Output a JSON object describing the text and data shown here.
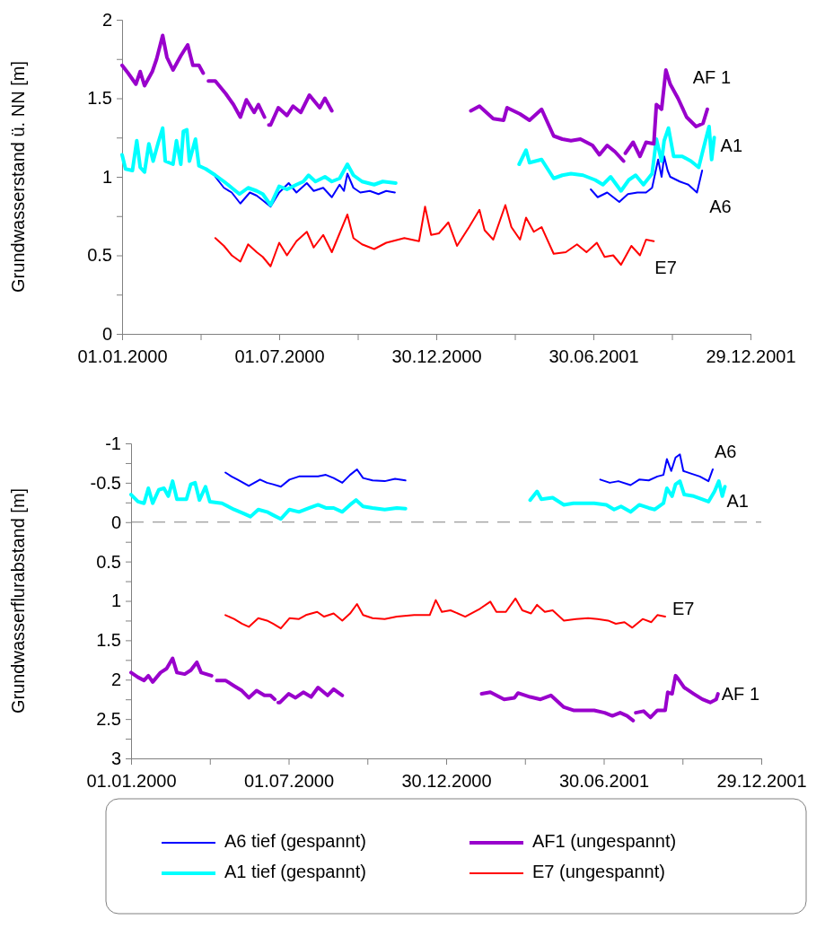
{
  "chart_data": [
    {
      "type": "line",
      "ylabel": "Grundwasserstand ü. NN [m]",
      "xlim": [
        "2000-01-01",
        "2001-12-29"
      ],
      "xticks": [
        {
          "value": "2000-01-01",
          "label": "01.01.2000"
        },
        {
          "value": "2000-04-01",
          "label": null
        },
        {
          "value": "2000-07-01",
          "label": "01.07.2000"
        },
        {
          "value": "2000-09-30",
          "label": null
        },
        {
          "value": "2000-12-30",
          "label": "30.12.2000"
        },
        {
          "value": "2001-03-31",
          "label": null
        },
        {
          "value": "2001-06-30",
          "label": "30.06.2001"
        },
        {
          "value": "2001-09-29",
          "label": null
        },
        {
          "value": "2001-12-29",
          "label": "29.12.2001"
        }
      ],
      "ylim": [
        0,
        2
      ],
      "yticks": [
        0,
        {
          "value": 0.25,
          "label": null
        },
        0.5,
        {
          "value": 0.75,
          "label": null
        },
        1,
        {
          "value": 1.25,
          "label": null
        },
        1.5,
        {
          "value": 1.75,
          "label": null
        },
        2
      ],
      "series": [
        {
          "color": "#0000ff",
          "x": [
            "2000-04-18",
            "2000-04-28",
            "2000-05-07",
            "2000-05-17",
            "2000-05-28",
            "2000-06-05",
            "2000-06-12",
            "2000-06-21",
            "2000-07-01",
            "2000-07-12",
            "2000-07-21",
            "2000-08-02",
            "2000-08-10",
            "2000-08-21",
            "2000-08-31",
            "2000-09-09",
            "2000-09-14",
            "2000-09-18",
            "2000-09-25",
            "2000-10-03",
            "2000-10-14",
            "2000-10-24",
            "2000-11-02",
            "2000-11-12",
            "2001-03-06",
            "2001-06-27",
            "2001-07-05",
            "2001-07-16",
            "2001-07-30",
            "2001-08-09",
            "2001-08-20",
            "2001-08-30",
            "2001-09-06",
            "2001-09-13",
            "2001-09-17",
            "2001-09-20",
            "2001-09-24",
            "2001-09-27",
            "2001-10-08",
            "2001-10-18",
            "2001-10-28",
            "2001-11-03"
          ],
          "values": [
            1.0,
            0.93,
            0.9,
            0.83,
            0.9,
            0.88,
            0.85,
            0.81,
            0.9,
            0.96,
            0.9,
            0.96,
            0.91,
            0.93,
            0.87,
            0.95,
            0.91,
            1.02,
            0.93,
            0.9,
            0.91,
            0.89,
            0.91,
            0.9,
            null,
            0.92,
            0.87,
            0.9,
            0.84,
            0.89,
            0.9,
            0.9,
            0.93,
            1.11,
            1.0,
            1.13,
            1.04,
            1.0,
            0.97,
            0.95,
            0.9,
            1.04
          ]
        },
        {
          "color": "#00ffff",
          "x": [
            "2000-01-01",
            "2000-01-05",
            "2000-01-13",
            "2000-01-18",
            "2000-01-22",
            "2000-01-27",
            "2000-02-01",
            "2000-02-06",
            "2000-02-12",
            "2000-02-17",
            "2000-02-20",
            "2000-02-29",
            "2000-03-04",
            "2000-03-09",
            "2000-03-12",
            "2000-03-16",
            "2000-03-19",
            "2000-03-26",
            "2000-03-30",
            "2000-04-07",
            "2000-04-18",
            "2000-04-28",
            "2000-05-07",
            "2000-05-16",
            "2000-05-26",
            "2000-06-05",
            "2000-06-12",
            "2000-06-21",
            "2000-07-01",
            "2000-07-10",
            "2000-07-21",
            "2000-07-29",
            "2000-08-04",
            "2000-08-12",
            "2000-08-23",
            "2000-08-31",
            "2000-09-09",
            "2000-09-18",
            "2000-09-25",
            "2000-10-05",
            "2000-10-19",
            "2000-10-29",
            "2000-11-13",
            "2001-01-25",
            "2001-04-05",
            "2001-04-13",
            "2001-04-17",
            "2001-05-01",
            "2001-05-15",
            "2001-05-25",
            "2001-06-04",
            "2001-06-18",
            "2001-07-02",
            "2001-07-11",
            "2001-07-20",
            "2001-08-01",
            "2001-08-10",
            "2001-08-18",
            "2001-08-27",
            "2001-09-06",
            "2001-09-11",
            "2001-09-17",
            "2001-09-20",
            "2001-09-25",
            "2001-10-01",
            "2001-10-11",
            "2001-10-21",
            "2001-10-30",
            "2001-11-04",
            "2001-11-11",
            "2001-11-14",
            "2001-11-17"
          ],
          "values": [
            1.14,
            1.05,
            1.04,
            1.23,
            1.06,
            1.03,
            1.21,
            1.1,
            1.22,
            1.31,
            1.1,
            1.08,
            1.23,
            1.08,
            1.29,
            1.3,
            1.1,
            1.24,
            1.07,
            1.05,
            1.01,
            0.97,
            0.93,
            0.89,
            0.93,
            0.91,
            0.89,
            0.82,
            0.94,
            0.92,
            0.95,
            0.97,
            1.01,
            0.97,
            1.0,
            0.97,
            0.99,
            1.08,
            1.01,
            0.97,
            0.95,
            0.97,
            0.96,
            null,
            1.08,
            1.17,
            1.09,
            1.11,
            0.99,
            1.01,
            1.02,
            1.01,
            0.98,
            0.95,
            1.0,
            0.91,
            0.98,
            1.01,
            0.95,
            1.02,
            1.24,
            1.1,
            1.23,
            1.31,
            1.13,
            1.13,
            1.1,
            1.06,
            1.17,
            1.32,
            1.11,
            1.25
          ]
        },
        {
          "color": "#9900cc",
          "x": [
            "2000-01-01",
            "2000-01-08",
            "2000-01-17",
            "2000-01-22",
            "2000-01-27",
            "2000-02-05",
            "2000-02-10",
            "2000-02-17",
            "2000-02-22",
            "2000-02-29",
            "2000-03-09",
            "2000-03-17",
            "2000-03-23",
            "2000-03-30",
            "2000-04-04",
            "2000-04-07",
            "2000-04-10",
            "2000-04-12",
            "2000-04-18",
            "2000-04-30",
            "2000-05-09",
            "2000-05-17",
            "2000-05-24",
            "2000-06-02",
            "2000-06-07",
            "2000-06-14",
            "2000-06-17",
            "2000-06-19",
            "2000-06-21",
            "2000-06-30",
            "2000-07-10",
            "2000-07-17",
            "2000-07-26",
            "2000-08-05",
            "2000-08-17",
            "2000-08-23",
            "2000-08-31",
            "2000-11-16",
            "2001-02-08",
            "2001-02-18",
            "2001-03-06",
            "2001-03-18",
            "2001-03-22",
            "2001-04-06",
            "2001-04-17",
            "2001-05-01",
            "2001-05-15",
            "2001-05-25",
            "2001-06-04",
            "2001-06-15",
            "2001-06-29",
            "2001-07-07",
            "2001-07-16",
            "2001-07-25",
            "2001-08-04",
            "2001-08-05",
            "2001-08-06",
            "2001-08-15",
            "2001-08-23",
            "2001-08-30",
            "2001-09-08",
            "2001-09-11",
            "2001-09-17",
            "2001-09-22",
            "2001-09-27",
            "2001-10-06",
            "2001-10-16",
            "2001-10-27",
            "2001-11-04",
            "2001-11-09"
          ],
          "values": [
            1.71,
            1.66,
            1.59,
            1.67,
            1.58,
            1.67,
            1.75,
            1.9,
            1.76,
            1.68,
            1.77,
            1.84,
            1.71,
            1.71,
            1.66,
            null,
            1.61,
            1.61,
            1.61,
            1.53,
            1.46,
            1.38,
            1.49,
            1.41,
            1.46,
            1.38,
            null,
            1.33,
            1.33,
            1.44,
            1.39,
            1.45,
            1.41,
            1.52,
            1.44,
            1.5,
            1.42,
            null,
            1.42,
            1.45,
            1.37,
            1.36,
            1.44,
            1.4,
            1.36,
            1.43,
            1.26,
            1.24,
            1.23,
            1.24,
            1.2,
            1.14,
            1.2,
            1.16,
            1.1,
            null,
            1.15,
            1.22,
            1.13,
            1.22,
            1.21,
            1.46,
            1.43,
            1.68,
            1.59,
            1.5,
            1.38,
            1.32,
            1.34,
            1.43
          ]
        },
        {
          "color": "#ff0000",
          "x": [
            "2000-04-18",
            "2000-04-28",
            "2000-05-07",
            "2000-05-17",
            "2000-05-26",
            "2000-06-05",
            "2000-06-12",
            "2000-06-21",
            "2000-07-01",
            "2000-07-10",
            "2000-07-21",
            "2000-08-02",
            "2000-08-10",
            "2000-08-21",
            "2000-08-31",
            "2000-09-09",
            "2000-09-18",
            "2000-09-25",
            "2000-10-05",
            "2000-10-19",
            "2000-11-02",
            "2000-11-23",
            "2000-12-10",
            "2000-12-17",
            "2000-12-24",
            "2001-01-02",
            "2001-01-13",
            "2001-01-23",
            "2001-02-06",
            "2001-02-18",
            "2001-02-24",
            "2001-03-06",
            "2001-03-20",
            "2001-03-27",
            "2001-04-06",
            "2001-04-13",
            "2001-04-22",
            "2001-05-01",
            "2001-05-15",
            "2001-05-29",
            "2001-06-11",
            "2001-06-22",
            "2001-07-04",
            "2001-07-13",
            "2001-07-23",
            "2001-08-01",
            "2001-08-13",
            "2001-08-23",
            "2001-08-30",
            "2001-09-08"
          ],
          "values": [
            0.61,
            0.56,
            0.5,
            0.46,
            0.57,
            0.52,
            0.49,
            0.43,
            0.58,
            0.5,
            0.59,
            0.65,
            0.55,
            0.63,
            0.52,
            0.64,
            0.76,
            0.61,
            0.57,
            0.54,
            0.58,
            0.61,
            0.59,
            0.81,
            0.63,
            0.64,
            0.71,
            0.56,
            0.68,
            0.79,
            0.66,
            0.6,
            0.82,
            0.68,
            0.6,
            0.74,
            0.65,
            0.68,
            0.51,
            0.52,
            0.57,
            0.52,
            0.58,
            0.49,
            0.5,
            0.44,
            0.56,
            0.5,
            0.6,
            0.59
          ]
        }
      ],
      "annotations": [
        {
          "text": "AF 1",
          "x": "2001-09-22",
          "y": 1.68
        },
        {
          "text": "A1",
          "x": "2001-11-17",
          "y": 1.25
        },
        {
          "text": "A6",
          "x": "2001-11-03",
          "y": 1.04
        },
        {
          "text": "E7",
          "x": "2001-09-08",
          "y": 0.59
        }
      ]
    },
    {
      "type": "line",
      "ylabel": "Grundwasserflurabstand [m]",
      "xlim": [
        "2000-01-01",
        "2001-12-29"
      ],
      "xticks": [
        {
          "value": "2000-01-01",
          "label": "01.01.2000"
        },
        {
          "value": "2000-04-01",
          "label": null
        },
        {
          "value": "2000-07-01",
          "label": "01.07.2000"
        },
        {
          "value": "2000-09-30",
          "label": null
        },
        {
          "value": "2000-12-30",
          "label": "30.12.2000"
        },
        {
          "value": "2001-03-31",
          "label": null
        },
        {
          "value": "2001-06-30",
          "label": "30.06.2001"
        },
        {
          "value": "2001-09-29",
          "label": null
        },
        {
          "value": "2001-12-29",
          "label": "29.12.2001"
        }
      ],
      "ylim": [
        3,
        -1
      ],
      "yticks": [
        -1,
        {
          "value": -0.75,
          "label": null
        },
        -0.5,
        {
          "value": -0.25,
          "label": null
        },
        0,
        {
          "value": 0.25,
          "label": null
        },
        0.5,
        {
          "value": 0.75,
          "label": null
        },
        1,
        {
          "value": 1.25,
          "label": null
        },
        1.5,
        {
          "value": 1.75,
          "label": null
        },
        2,
        {
          "value": 2.25,
          "label": null
        },
        2.5,
        {
          "value": 2.75,
          "label": null
        },
        3
      ],
      "legend": "bottom",
      "series": [
        {
          "name": "A6 tief (gespannt)",
          "color": "#0000ff",
          "x": [
            "2000-04-19",
            "2000-04-26",
            "2000-05-03",
            "2000-05-16",
            "2000-05-29",
            "2000-06-06",
            "2000-06-13",
            "2000-06-22",
            "2000-07-02",
            "2000-07-13",
            "2000-07-25",
            "2000-08-04",
            "2000-08-13",
            "2000-08-22",
            "2000-09-01",
            "2000-09-10",
            "2000-09-18",
            "2000-09-25",
            "2000-10-06",
            "2000-10-20",
            "2000-11-01",
            "2000-11-13",
            "2001-03-06",
            "2001-06-26",
            "2001-07-07",
            "2001-07-17",
            "2001-07-31",
            "2001-08-10",
            "2001-08-21",
            "2001-08-31",
            "2001-09-07",
            "2001-09-11",
            "2001-09-16",
            "2001-09-21",
            "2001-09-26",
            "2001-09-30",
            "2001-10-08",
            "2001-10-19",
            "2001-10-29",
            "2001-11-03"
          ],
          "values": [
            -0.63,
            -0.58,
            -0.54,
            -0.46,
            -0.54,
            -0.5,
            -0.48,
            -0.45,
            -0.54,
            -0.58,
            -0.58,
            -0.58,
            -0.6,
            -0.56,
            -0.5,
            -0.6,
            -0.67,
            -0.56,
            -0.53,
            -0.52,
            -0.55,
            -0.53,
            null,
            -0.54,
            -0.5,
            -0.52,
            -0.47,
            -0.54,
            -0.53,
            -0.58,
            -0.6,
            -0.8,
            -0.65,
            -0.82,
            -0.86,
            -0.65,
            -0.62,
            -0.58,
            -0.52,
            -0.67
          ]
        },
        {
          "name": "A1 tief (gespannt)",
          "color": "#00ffff",
          "x": [
            "2000-01-01",
            "2000-01-09",
            "2000-01-16",
            "2000-01-21",
            "2000-01-26",
            "2000-02-02",
            "2000-02-08",
            "2000-02-13",
            "2000-02-18",
            "2000-02-23",
            "2000-03-05",
            "2000-03-10",
            "2000-03-15",
            "2000-03-20",
            "2000-03-27",
            "2000-04-01",
            "2000-04-15",
            "2000-04-29",
            "2000-05-10",
            "2000-05-18",
            "2000-05-27",
            "2000-06-06",
            "2000-06-13",
            "2000-06-22",
            "2000-07-02",
            "2000-07-13",
            "2000-07-25",
            "2000-08-04",
            "2000-08-13",
            "2000-08-22",
            "2000-09-01",
            "2000-09-10",
            "2000-09-17",
            "2000-09-25",
            "2000-10-06",
            "2000-10-20",
            "2000-11-03",
            "2000-11-13",
            "2001-01-25",
            "2001-04-06",
            "2001-04-14",
            "2001-04-19",
            "2001-05-02",
            "2001-05-15",
            "2001-05-26",
            "2001-06-05",
            "2001-06-19",
            "2001-07-03",
            "2001-07-12",
            "2001-07-20",
            "2001-07-31",
            "2001-08-10",
            "2001-08-21",
            "2001-08-28",
            "2001-09-07",
            "2001-09-11",
            "2001-09-17",
            "2001-09-21",
            "2001-09-26",
            "2001-10-01",
            "2001-10-12",
            "2001-10-22",
            "2001-10-29",
            "2001-11-05",
            "2001-11-10",
            "2001-11-14",
            "2001-11-17"
          ],
          "values": [
            -0.35,
            -0.26,
            -0.24,
            -0.43,
            -0.24,
            -0.41,
            -0.43,
            -0.33,
            -0.52,
            -0.29,
            -0.29,
            -0.48,
            -0.5,
            -0.28,
            -0.45,
            -0.26,
            -0.24,
            -0.16,
            -0.11,
            -0.07,
            -0.16,
            -0.13,
            -0.09,
            -0.04,
            -0.16,
            -0.13,
            -0.18,
            -0.22,
            -0.18,
            -0.18,
            -0.13,
            -0.22,
            -0.28,
            -0.2,
            -0.18,
            -0.16,
            -0.18,
            -0.17,
            null,
            -0.28,
            -0.39,
            -0.29,
            -0.31,
            -0.22,
            -0.24,
            -0.24,
            -0.24,
            -0.22,
            -0.16,
            -0.2,
            -0.13,
            -0.22,
            -0.18,
            -0.16,
            -0.24,
            -0.43,
            -0.33,
            -0.48,
            -0.52,
            -0.35,
            -0.33,
            -0.29,
            -0.26,
            -0.39,
            -0.52,
            -0.33,
            -0.45
          ]
        },
        {
          "name": "AF1 (ungespannt)",
          "color": "#9900cc",
          "x": [
            "2000-01-01",
            "2000-01-09",
            "2000-01-16",
            "2000-01-21",
            "2000-01-26",
            "2000-02-04",
            "2000-02-11",
            "2000-02-18",
            "2000-02-23",
            "2000-03-03",
            "2000-03-10",
            "2000-03-17",
            "2000-03-22",
            "2000-04-03",
            "2000-04-06",
            "2000-04-09",
            "2000-04-11",
            "2000-04-19",
            "2000-04-29",
            "2000-05-08",
            "2000-05-16",
            "2000-05-25",
            "2000-06-03",
            "2000-06-10",
            "2000-06-15",
            "2000-06-17",
            "2000-06-19",
            "2000-06-21",
            "2000-07-01",
            "2000-07-09",
            "2000-07-18",
            "2000-07-27",
            "2000-08-04",
            "2000-08-15",
            "2000-08-22",
            "2000-09-01",
            "2000-11-16",
            "2001-02-09",
            "2001-02-19",
            "2001-03-07",
            "2001-03-19",
            "2001-03-23",
            "2001-04-06",
            "2001-04-18",
            "2001-04-30",
            "2001-05-15",
            "2001-05-26",
            "2001-06-09",
            "2001-06-19",
            "2001-07-01",
            "2001-07-10",
            "2001-07-19",
            "2001-07-27",
            "2001-08-03",
            "2001-08-05",
            "2001-08-06",
            "2001-08-15",
            "2001-08-23",
            "2001-08-31",
            "2001-09-09",
            "2001-09-12",
            "2001-09-17",
            "2001-09-21",
            "2001-09-24",
            "2001-10-01",
            "2001-10-12",
            "2001-10-22",
            "2001-10-31",
            "2001-11-07",
            "2001-11-09"
          ],
          "values": [
            1.91,
            1.97,
            2.01,
            1.95,
            2.03,
            1.91,
            1.86,
            1.73,
            1.91,
            1.93,
            1.88,
            1.78,
            1.91,
            1.95,
            null,
            2.01,
            2.01,
            2.01,
            2.08,
            2.14,
            2.23,
            2.14,
            2.2,
            2.2,
            2.25,
            null,
            2.29,
            2.29,
            2.18,
            2.23,
            2.16,
            2.22,
            2.1,
            2.2,
            2.12,
            2.2,
            null,
            2.18,
            2.16,
            2.25,
            2.23,
            2.17,
            2.22,
            2.25,
            2.2,
            2.35,
            2.39,
            2.39,
            2.39,
            2.42,
            2.46,
            2.42,
            2.46,
            2.52,
            null,
            2.42,
            2.4,
            2.48,
            2.39,
            2.39,
            2.16,
            2.18,
            1.95,
            1.99,
            2.1,
            2.18,
            2.25,
            2.29,
            2.25,
            2.18
          ]
        },
        {
          "name": "E7 (ungespannt)",
          "color": "#ff0000",
          "x": [
            "2000-04-19",
            "2000-04-29",
            "2000-05-08",
            "2000-05-16",
            "2000-05-27",
            "2000-06-06",
            "2000-06-13",
            "2000-06-22",
            "2000-07-02",
            "2000-07-13",
            "2000-07-21",
            "2000-08-03",
            "2000-08-11",
            "2000-08-22",
            "2000-09-01",
            "2000-09-10",
            "2000-09-18",
            "2000-09-25",
            "2000-10-06",
            "2000-10-20",
            "2000-11-03",
            "2000-11-23",
            "2000-12-11",
            "2000-12-18",
            "2000-12-25",
            "2001-01-04",
            "2001-01-21",
            "2001-02-07",
            "2001-02-19",
            "2001-02-26",
            "2001-03-09",
            "2001-03-20",
            "2001-03-28",
            "2001-04-07",
            "2001-04-14",
            "2001-04-23",
            "2001-05-02",
            "2001-05-15",
            "2001-05-29",
            "2001-06-12",
            "2001-06-23",
            "2001-07-05",
            "2001-07-14",
            "2001-07-24",
            "2001-08-02",
            "2001-08-14",
            "2001-08-24",
            "2001-08-31",
            "2001-09-09"
          ],
          "values": [
            1.18,
            1.23,
            1.29,
            1.33,
            1.22,
            1.25,
            1.29,
            1.35,
            1.22,
            1.23,
            1.18,
            1.14,
            1.2,
            1.16,
            1.25,
            1.16,
            1.04,
            1.18,
            1.22,
            1.23,
            1.2,
            1.18,
            1.18,
            0.99,
            1.14,
            1.12,
            1.2,
            1.1,
            1.01,
            1.14,
            1.14,
            0.97,
            1.12,
            1.16,
            1.05,
            1.14,
            1.12,
            1.25,
            1.23,
            1.22,
            1.23,
            1.25,
            1.29,
            1.27,
            1.34,
            1.23,
            1.27,
            1.18,
            1.2
          ]
        }
      ],
      "ref_lines": [
        {
          "axis": "y",
          "value": 0,
          "color": "#808080",
          "line_style": "dashed"
        }
      ],
      "annotations": [
        {
          "text": "A6",
          "x": "2001-11-03",
          "y": -0.67
        },
        {
          "text": "A1",
          "x": "2001-11-17",
          "y": -0.45
        },
        {
          "text": "E7",
          "x": "2001-09-09",
          "y": 1.2
        },
        {
          "text": "AF 1",
          "x": "2001-11-09",
          "y": 2.18
        }
      ]
    }
  ]
}
